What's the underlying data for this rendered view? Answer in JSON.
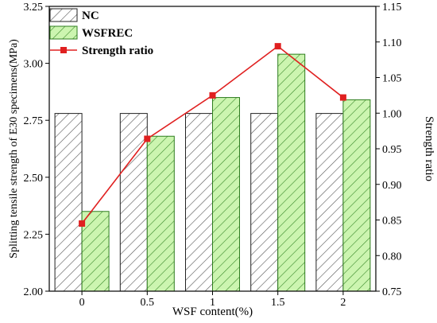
{
  "chart_data": {
    "type": "bar",
    "categories": [
      "0",
      "0.5",
      "1",
      "1.5",
      "2"
    ],
    "xlabel": "WSF content(%)",
    "ylabel": "Splitting tensile strength of E30 specimens(MPa)",
    "y2label": "Strength ratio",
    "ylim": [
      2.0,
      3.25
    ],
    "y2lim": [
      0.75,
      1.15
    ],
    "yticks": [
      "2.00",
      "2.25",
      "2.50",
      "2.75",
      "3.00",
      "3.25"
    ],
    "y2ticks": [
      "0.75",
      "0.80",
      "0.85",
      "0.90",
      "0.95",
      "1.00",
      "1.05",
      "1.10",
      "1.15"
    ],
    "series": [
      {
        "name": "NC",
        "type": "bar",
        "axis": "left",
        "values": [
          2.78,
          2.78,
          2.78,
          2.78,
          2.78
        ],
        "color": "#ffffff",
        "hatch": "#555555"
      },
      {
        "name": "WSFREC",
        "type": "bar",
        "axis": "left",
        "values": [
          2.35,
          2.68,
          2.85,
          3.04,
          2.84
        ],
        "color": "#ccf5b0",
        "hatch": "#3a8a2a"
      },
      {
        "name": "Strength ratio",
        "type": "line",
        "axis": "right",
        "values": [
          0.845,
          0.964,
          1.025,
          1.094,
          1.022
        ],
        "color": "#e02020"
      }
    ],
    "legend_position": "top-left",
    "grid": false
  }
}
